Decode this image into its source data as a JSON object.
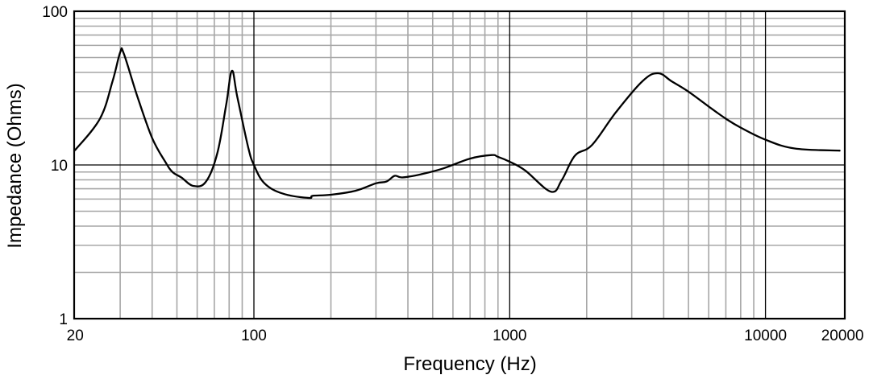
{
  "chart_data": {
    "type": "line",
    "title": "",
    "xlabel": "Frequency (Hz)",
    "ylabel": "Impedance (Ohms)",
    "xscale": "log",
    "yscale": "log",
    "xlim": [
      20,
      20000
    ],
    "ylim": [
      1,
      100
    ],
    "grid": true,
    "legend": null,
    "x_tick_labels": [
      "20",
      "100",
      "1000",
      "10000",
      "20000"
    ],
    "x_ticks": [
      20,
      100,
      1000,
      10000,
      20000
    ],
    "y_tick_labels": [
      "1",
      "10",
      "100"
    ],
    "y_ticks": [
      1,
      10,
      100
    ],
    "series": [
      {
        "name": "Impedance",
        "color": "#000000",
        "x": [
          20,
          25,
          28,
          30,
          31,
          35,
          40,
          45,
          48,
          52,
          58,
          65,
          72,
          78,
          82,
          86,
          95,
          100,
          110,
          130,
          164,
          170,
          200,
          250,
          300,
          330,
          355,
          380,
          450,
          550,
          700,
          850,
          900,
          1000,
          1150,
          1450,
          1600,
          1800,
          2100,
          2600,
          3300,
          3800,
          4300,
          5000,
          6000,
          7000,
          8000,
          10000,
          13000,
          19500
        ],
        "values": [
          12.5,
          20,
          35,
          54,
          53,
          28,
          15,
          10.5,
          9,
          8.3,
          7.3,
          7.8,
          12,
          25,
          41,
          28,
          13,
          10,
          7.6,
          6.5,
          6.1,
          6.3,
          6.4,
          6.8,
          7.6,
          7.8,
          8.5,
          8.3,
          8.7,
          9.5,
          11,
          11.6,
          11.3,
          10.5,
          9.2,
          6.7,
          8,
          11.5,
          13.5,
          22,
          35,
          39.5,
          35,
          30,
          24,
          20,
          17.5,
          14.6,
          12.8,
          12.4
        ]
      }
    ]
  },
  "axes": {
    "x_title": "Frequency (Hz)",
    "y_title": "Impedance (Ohms)"
  }
}
